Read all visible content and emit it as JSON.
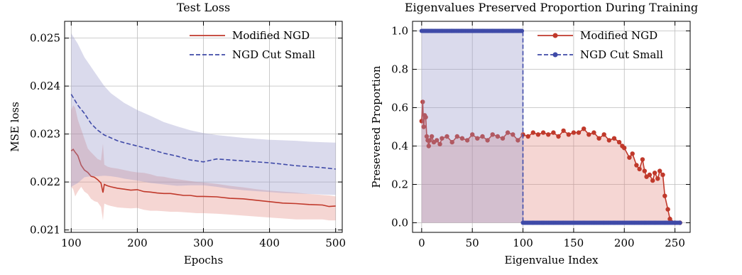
{
  "chart_data": [
    {
      "type": "line",
      "title": "Test Loss",
      "xlabel": "Epochs",
      "ylabel": "MSE loss",
      "xlim": [
        90,
        510
      ],
      "ylim": [
        0.02095,
        0.02535
      ],
      "xticks": [
        100,
        200,
        300,
        400,
        500
      ],
      "yticks": [
        0.021,
        0.022,
        0.023,
        0.024,
        0.025
      ],
      "grid": true,
      "legend_position": "top-right",
      "series": [
        {
          "name": "Modified NGD",
          "color": "#c0392b",
          "style": "solid",
          "x": [
            100,
            103,
            106,
            110,
            115,
            120,
            125,
            130,
            135,
            140,
            145,
            148,
            150,
            155,
            160,
            170,
            180,
            190,
            200,
            210,
            220,
            230,
            240,
            250,
            260,
            270,
            280,
            290,
            300,
            320,
            340,
            360,
            380,
            400,
            420,
            440,
            460,
            480,
            490,
            500
          ],
          "y": [
            0.02265,
            0.02268,
            0.02262,
            0.02255,
            0.02235,
            0.02225,
            0.0222,
            0.02212,
            0.0221,
            0.02205,
            0.02198,
            0.02178,
            0.02195,
            0.02192,
            0.0219,
            0.02187,
            0.02185,
            0.02183,
            0.02184,
            0.0218,
            0.02179,
            0.02177,
            0.02176,
            0.02176,
            0.02174,
            0.02172,
            0.02172,
            0.0217,
            0.0217,
            0.02169,
            0.02166,
            0.02165,
            0.02162,
            0.02159,
            0.02156,
            0.02155,
            0.02153,
            0.02152,
            0.02149,
            0.0215
          ],
          "band_upper": [
            0.0235,
            0.0236,
            0.02355,
            0.0233,
            0.0231,
            0.0229,
            0.0227,
            0.02262,
            0.02255,
            0.02248,
            0.02245,
            0.0228,
            0.02236,
            0.02232,
            0.0223,
            0.02228,
            0.02225,
            0.02222,
            0.0222,
            0.02219,
            0.02216,
            0.02212,
            0.02211,
            0.02208,
            0.02206,
            0.02204,
            0.02202,
            0.022,
            0.02199,
            0.02196,
            0.02192,
            0.02189,
            0.02185,
            0.02182,
            0.0218,
            0.02178,
            0.02175,
            0.02173,
            0.02172,
            0.0217
          ],
          "band_lower": [
            0.0219,
            0.02185,
            0.0217,
            0.0218,
            0.0219,
            0.0218,
            0.02175,
            0.02165,
            0.0216,
            0.02158,
            0.02148,
            0.0212,
            0.02155,
            0.02152,
            0.0215,
            0.02147,
            0.02146,
            0.02145,
            0.02146,
            0.02142,
            0.0214,
            0.0214,
            0.02139,
            0.02138,
            0.02138,
            0.02137,
            0.02136,
            0.02135,
            0.02135,
            0.02134,
            0.02132,
            0.0213,
            0.02128,
            0.02126,
            0.02124,
            0.02122,
            0.02122,
            0.02122,
            0.0212,
            0.0212
          ]
        },
        {
          "name": "NGD Cut Small",
          "color": "#3f4aa8",
          "style": "dashed",
          "x": [
            100,
            110,
            120,
            130,
            140,
            150,
            160,
            170,
            180,
            200,
            220,
            240,
            260,
            280,
            300,
            320,
            340,
            360,
            380,
            400,
            420,
            440,
            460,
            480,
            500
          ],
          "y": [
            0.02383,
            0.0236,
            0.02343,
            0.02322,
            0.02308,
            0.02298,
            0.02292,
            0.02286,
            0.02282,
            0.02275,
            0.02268,
            0.0226,
            0.02254,
            0.02246,
            0.02242,
            0.02248,
            0.02246,
            0.02244,
            0.02242,
            0.0224,
            0.02237,
            0.02234,
            0.02232,
            0.0223,
            0.02227
          ],
          "band_upper": [
            0.0251,
            0.02488,
            0.0246,
            0.0244,
            0.0242,
            0.024,
            0.02385,
            0.02375,
            0.02365,
            0.0235,
            0.02338,
            0.02325,
            0.02316,
            0.02308,
            0.02302,
            0.02298,
            0.02295,
            0.02292,
            0.0229,
            0.02288,
            0.02287,
            0.02286,
            0.02284,
            0.02283,
            0.02282
          ],
          "band_lower": [
            0.0219,
            0.02198,
            0.0221,
            0.02212,
            0.02212,
            0.02213,
            0.02212,
            0.0221,
            0.02207,
            0.02203,
            0.02198,
            0.02195,
            0.02192,
            0.02193,
            0.02193,
            0.0219,
            0.02186,
            0.02183,
            0.02181,
            0.02179,
            0.02177,
            0.02176,
            0.02175,
            0.02174,
            0.02173
          ]
        }
      ]
    },
    {
      "type": "line",
      "title": "Eigenvalues Preserved Proportion During Training",
      "xlabel": "Eigenvalue Index",
      "ylabel": "Presevered Proportion",
      "xlim": [
        -9,
        265
      ],
      "ylim": [
        -0.05,
        1.05
      ],
      "xticks": [
        0,
        50,
        100,
        150,
        200,
        250
      ],
      "yticks": [
        0.0,
        0.2,
        0.4,
        0.6,
        0.8,
        1.0
      ],
      "grid": true,
      "legend_position": "top-right",
      "series": [
        {
          "name": "Modified NGD",
          "color": "#c0392b",
          "style": "solid-markers",
          "x": [
            0,
            1,
            2,
            3,
            4,
            5,
            6,
            7,
            8,
            10,
            12,
            15,
            18,
            20,
            25,
            30,
            35,
            40,
            45,
            50,
            55,
            60,
            65,
            70,
            75,
            80,
            85,
            90,
            95,
            100,
            105,
            110,
            115,
            120,
            125,
            130,
            135,
            140,
            145,
            150,
            155,
            160,
            165,
            170,
            175,
            180,
            185,
            190,
            195,
            198,
            200,
            205,
            208,
            212,
            215,
            218,
            220,
            222,
            225,
            228,
            230,
            233,
            235,
            238,
            240,
            243,
            245,
            250,
            255
          ],
          "y": [
            0.53,
            0.63,
            0.5,
            0.56,
            0.55,
            0.45,
            0.43,
            0.4,
            0.43,
            0.45,
            0.42,
            0.43,
            0.41,
            0.44,
            0.45,
            0.42,
            0.45,
            0.44,
            0.43,
            0.46,
            0.44,
            0.45,
            0.43,
            0.46,
            0.45,
            0.44,
            0.47,
            0.46,
            0.43,
            0.46,
            0.45,
            0.47,
            0.46,
            0.47,
            0.46,
            0.47,
            0.45,
            0.48,
            0.46,
            0.47,
            0.47,
            0.49,
            0.46,
            0.47,
            0.44,
            0.46,
            0.43,
            0.44,
            0.42,
            0.4,
            0.39,
            0.34,
            0.36,
            0.3,
            0.28,
            0.33,
            0.27,
            0.24,
            0.25,
            0.22,
            0.26,
            0.23,
            0.27,
            0.25,
            0.14,
            0.07,
            0.02,
            0.0,
            0.0
          ]
        },
        {
          "name": "NGD Cut Small",
          "color": "#3f4aa8",
          "style": "dashed-markers",
          "x": [
            0,
            10,
            20,
            30,
            40,
            50,
            60,
            70,
            80,
            90,
            99,
            100,
            110,
            120,
            130,
            140,
            150,
            160,
            170,
            180,
            190,
            200,
            210,
            220,
            230,
            240,
            250,
            255
          ],
          "y": [
            1.0,
            1.0,
            1.0,
            1.0,
            1.0,
            1.0,
            1.0,
            1.0,
            1.0,
            1.0,
            1.0,
            0.0,
            0.0,
            0.0,
            0.0,
            0.0,
            0.0,
            0.0,
            0.0,
            0.0,
            0.0,
            0.0,
            0.0,
            0.0,
            0.0,
            0.0,
            0.0,
            0.0
          ]
        }
      ]
    }
  ]
}
